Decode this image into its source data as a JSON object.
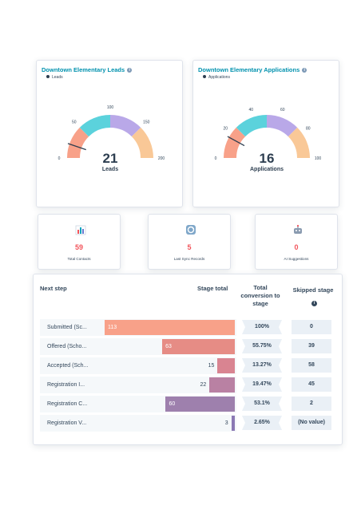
{
  "gauges": [
    {
      "title": "Downtown Elementary Leads",
      "legend": "Leads",
      "value": "21",
      "unit": "Leads",
      "max": 200,
      "ticks": [
        "0",
        "50",
        "100",
        "150",
        "200"
      ],
      "colors": [
        "#f8a189",
        "#5bd2dc",
        "#b9a8e8",
        "#f9c897"
      ]
    },
    {
      "title": "Downtown Elementary Applications",
      "legend": "Applications",
      "value": "16",
      "unit": "Applications",
      "max": 100,
      "ticks": [
        "0",
        "20",
        "40",
        "60",
        "80",
        "100"
      ],
      "colors": [
        "#f8a189",
        "#5bd2dc",
        "#b9a8e8",
        "#f9c897"
      ]
    }
  ],
  "kpis": [
    {
      "value": "59",
      "label": "Total Contacts",
      "icon": "bar-chart-icon"
    },
    {
      "value": "5",
      "label": "Last Sync Records",
      "icon": "sync-icon"
    },
    {
      "value": "0",
      "label": "AI Suggestions",
      "icon": "robot-icon"
    }
  ],
  "funnel": {
    "headers": {
      "next_step": "Next step",
      "stage_total": "Stage total",
      "total_conversion": "Total conversion to stage",
      "skipped_stage": "Skipped stage"
    },
    "max_total": 113,
    "rows": [
      {
        "label": "Submitted (Sc...",
        "total": 113,
        "display": "113",
        "conversion": "100%",
        "skipped": "0",
        "color": "#f8a189"
      },
      {
        "label": "Offered (Scho...",
        "total": 63,
        "display": "63",
        "conversion": "55.75%",
        "skipped": "39",
        "color": "#e68c85"
      },
      {
        "label": "Accepted (Sch...",
        "total": 15,
        "display": "15",
        "conversion": "13.27%",
        "skipped": "58",
        "color": "#d98491"
      },
      {
        "label": "Registration I...",
        "total": 22,
        "display": "22",
        "conversion": "19.47%",
        "skipped": "45",
        "color": "#b981a3"
      },
      {
        "label": "Registration C...",
        "total": 60,
        "display": "60",
        "conversion": "53.1%",
        "skipped": "2",
        "color": "#9e80ad"
      },
      {
        "label": "Registration V...",
        "total": 3,
        "display": "3",
        "conversion": "2.65%",
        "skipped": "(No value)",
        "color": "#8c79b4"
      }
    ]
  }
}
